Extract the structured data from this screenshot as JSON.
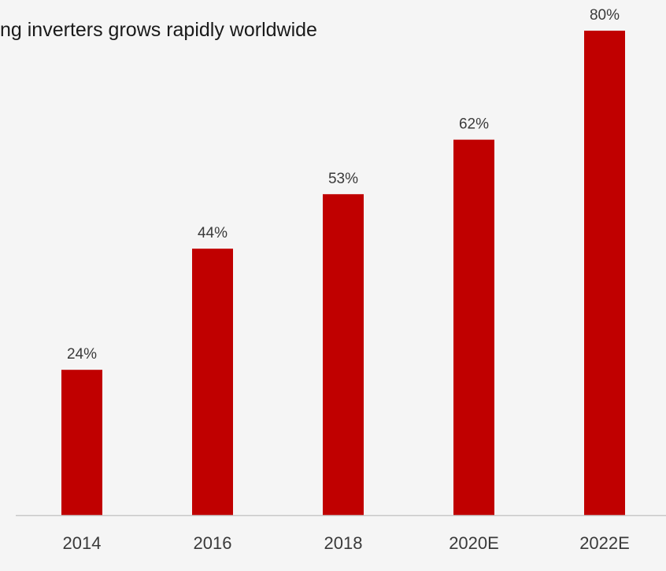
{
  "chart_data": {
    "type": "bar",
    "title": "ng inverters grows rapidly worldwide",
    "categories": [
      "2014",
      "2016",
      "2018",
      "2020E",
      "2022E"
    ],
    "values": [
      24,
      44,
      53,
      62,
      80
    ],
    "value_labels": [
      "24%",
      "44%",
      "53%",
      "62%",
      "80%"
    ],
    "xlabel": "",
    "ylabel": "",
    "ylim": [
      0,
      80
    ],
    "grid": false,
    "legend": "none",
    "colors": {
      "bar": "#c00000",
      "axis": "#c8c8c8",
      "label_text": "#3a3a3a",
      "background": "#f5f5f5"
    }
  }
}
